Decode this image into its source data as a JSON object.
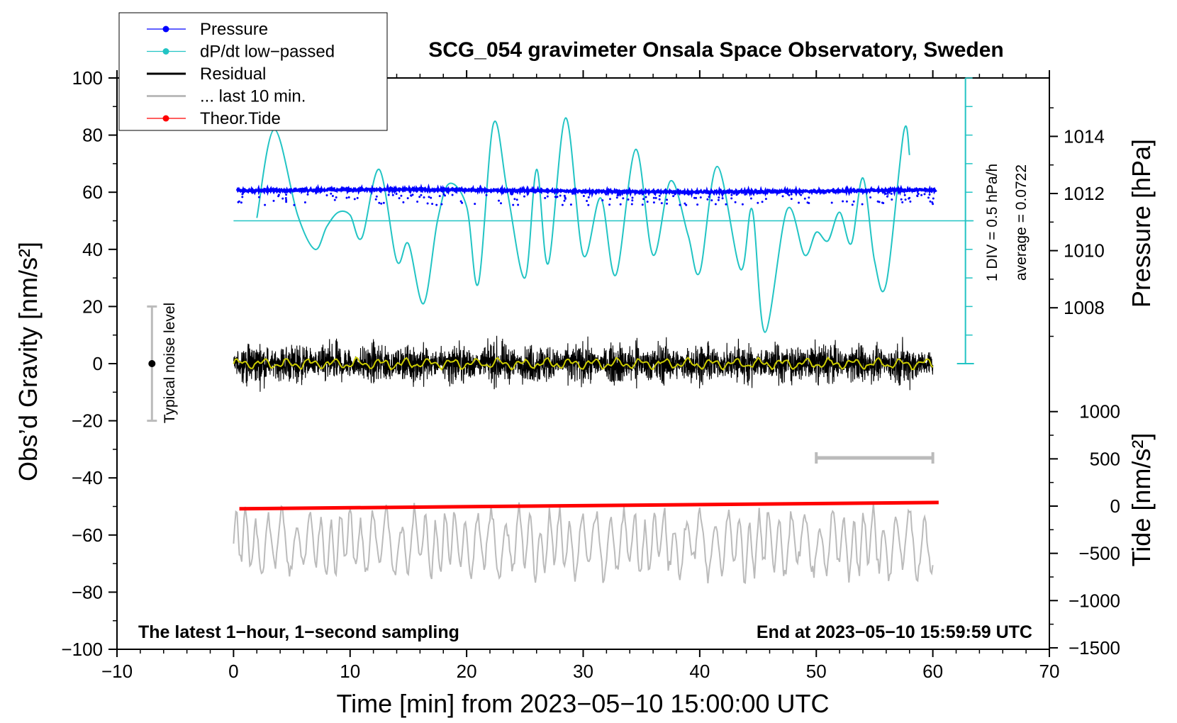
{
  "chart_data": {
    "type": "line",
    "title": "SCG_054 gravimeter Onsala Space Observatory, Sweden",
    "xlabel": "Time [min] from 2023−05−10 15:00:00 UTC",
    "ylabel_left": "Obs’d Gravity [nm/s²]",
    "ylabel_right_pressure": "Pressure [hPa]",
    "ylabel_right_tide": "Tide [nm/s²]",
    "xlim": [
      -10,
      70
    ],
    "ylim": [
      -100,
      100
    ],
    "x_ticks": [
      -10,
      0,
      10,
      20,
      30,
      40,
      50,
      60,
      70
    ],
    "x_tick_labels": [
      "−10",
      "0",
      "10",
      "20",
      "30",
      "40",
      "50",
      "60",
      "70"
    ],
    "y_ticks": [
      -100,
      -80,
      -60,
      -40,
      -20,
      0,
      20,
      40,
      60,
      80,
      100
    ],
    "y_tick_labels": [
      "−100",
      "−80",
      "−60",
      "−40",
      "−20",
      "0",
      "20",
      "40",
      "60",
      "80",
      "100"
    ],
    "pressure_axis": {
      "ticks": [
        1008,
        1010,
        1012,
        1014
      ],
      "tick_labels": [
        "1008",
        "1010",
        "1012",
        "1014"
      ]
    },
    "tide_axis": {
      "ticks": [
        -1500,
        -1000,
        -500,
        0,
        500,
        1000
      ],
      "tick_labels": [
        "−1500",
        "−1000",
        "−500",
        "0",
        "500",
        "1000"
      ]
    },
    "legend": {
      "position": "top-left",
      "entries": [
        {
          "label": "Pressure",
          "color": "#0000ff",
          "marker": true
        },
        {
          "label": "dP/dt low−passed",
          "color": "#22c4c4",
          "marker": true
        },
        {
          "label": "Residual",
          "color": "#000000",
          "marker": false
        },
        {
          "label": "... last 10 min.",
          "color": "#bbbbbb",
          "marker": false
        },
        {
          "label": "Theor.Tide",
          "color": "#ff0000",
          "marker": true
        }
      ]
    },
    "annotations": {
      "noise": "Typical noise level",
      "div": "1 DIV = 0.5 hPa/h",
      "average": "average = 0.0722",
      "bottom_left": "The latest 1−hour, 1−second sampling",
      "bottom_right": "End at 2023−05−10 15:59:59 UTC"
    },
    "noise_bar": {
      "x": -7,
      "y_center": 0,
      "y_low": -20,
      "y_high": 20
    },
    "scale_bar_last10": {
      "x_start": 50,
      "x_end": 60,
      "y": -33
    },
    "series": [
      {
        "name": "Pressure",
        "kind": "scatter",
        "color": "#0000ff",
        "x_range": [
          0.3,
          60.3
        ],
        "y_mean": 60.5,
        "y_spread": 0.8
      },
      {
        "name": "dP/dt low−passed",
        "kind": "line",
        "color": "#22c4c4",
        "points": [
          [
            2.0,
            51
          ],
          [
            3.5,
            82
          ],
          [
            5.5,
            52
          ],
          [
            7,
            40
          ],
          [
            8,
            48
          ],
          [
            9,
            53
          ],
          [
            10,
            52
          ],
          [
            11,
            44
          ],
          [
            12.5,
            68
          ],
          [
            14,
            36
          ],
          [
            15,
            42
          ],
          [
            16.3,
            21
          ],
          [
            17.5,
            50
          ],
          [
            18.5,
            63
          ],
          [
            20,
            55
          ],
          [
            21,
            28
          ],
          [
            22.3,
            84
          ],
          [
            23.5,
            60
          ],
          [
            25,
            30
          ],
          [
            26,
            68
          ],
          [
            27,
            35
          ],
          [
            28.5,
            86
          ],
          [
            30,
            38
          ],
          [
            31.5,
            58
          ],
          [
            32.8,
            31
          ],
          [
            34.5,
            75
          ],
          [
            36,
            38
          ],
          [
            37.5,
            64
          ],
          [
            39,
            45
          ],
          [
            40,
            32
          ],
          [
            41.5,
            69
          ],
          [
            43.5,
            33
          ],
          [
            44.5,
            54
          ],
          [
            45.6,
            11
          ],
          [
            47.5,
            54
          ],
          [
            49,
            38
          ],
          [
            50,
            46
          ],
          [
            51,
            43
          ],
          [
            52,
            53
          ],
          [
            53,
            42
          ],
          [
            54,
            65
          ],
          [
            55,
            36
          ],
          [
            56,
            28
          ],
          [
            57.5,
            81
          ],
          [
            58,
            73
          ]
        ],
        "reference_y": 50
      },
      {
        "name": "Residual",
        "kind": "line",
        "color": "#000000",
        "x_range": [
          0,
          60
        ],
        "y_center": 0,
        "y_spread": 17
      },
      {
        "name": "Residual smoothed",
        "kind": "line",
        "color": "#cccc00",
        "x_range": [
          0,
          60
        ],
        "y_center": 0,
        "y_spread": 2
      },
      {
        "name": "... last 10 min.",
        "kind": "line",
        "color": "#bbbbbb",
        "x_range": [
          0,
          60
        ],
        "y_center": -63,
        "y_spread": 13
      },
      {
        "name": "Theor.Tide",
        "kind": "line",
        "color": "#ff0000",
        "points": [
          [
            0.5,
            -50.8
          ],
          [
            60.5,
            -48.6
          ]
        ]
      }
    ]
  }
}
